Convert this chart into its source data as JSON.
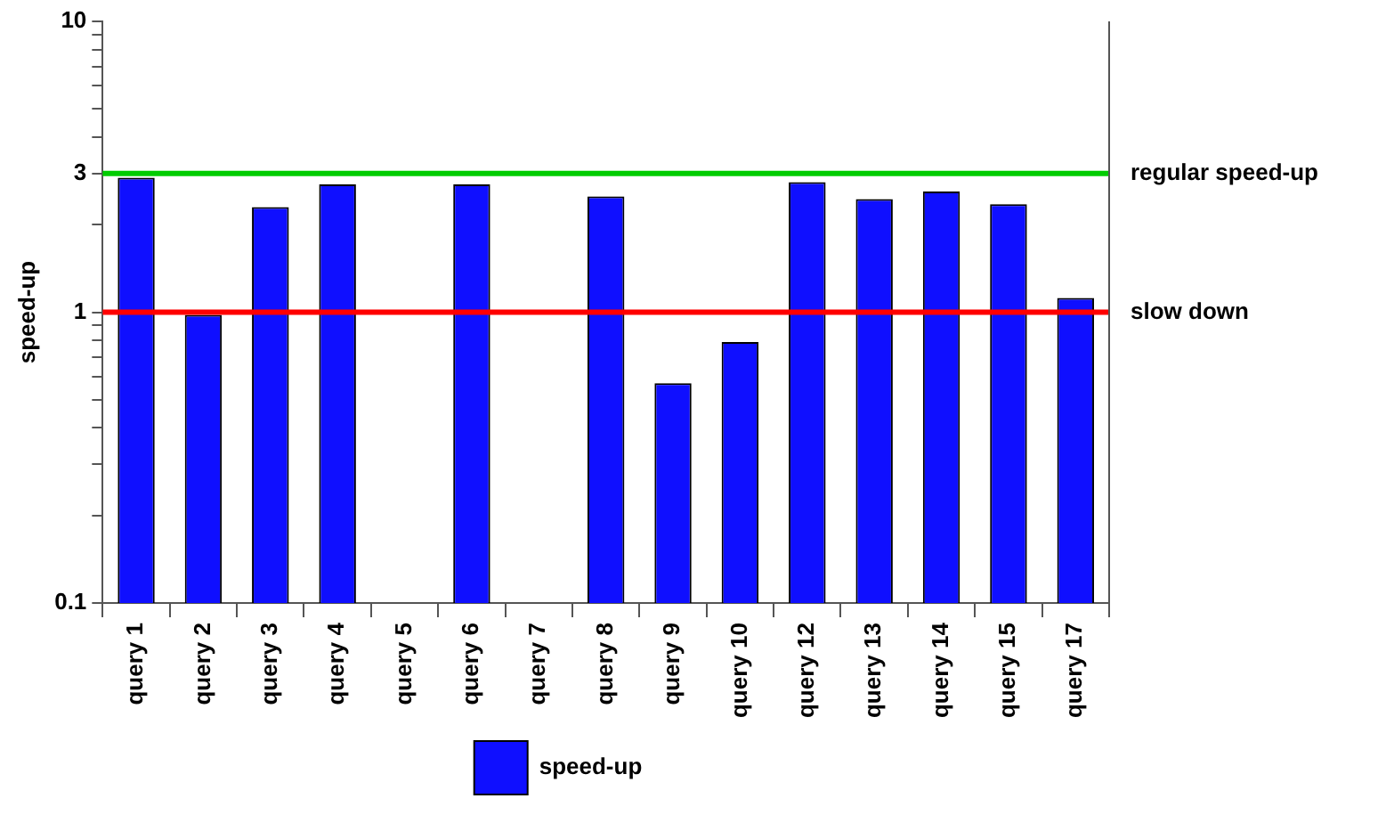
{
  "chart_data": {
    "type": "bar",
    "ylabel": "speed-up",
    "categories": [
      "query 1",
      "query 2",
      "query 3",
      "query 4",
      "query 5",
      "query 6",
      "query 7",
      "query 8",
      "query 9",
      "query 10",
      "query 12",
      "query 13",
      "query 14",
      "query 15",
      "query 17"
    ],
    "series": [
      {
        "name": "speed-up",
        "color": "#0f0fff",
        "values": [
          2.9,
          0.98,
          2.3,
          2.75,
          null,
          2.75,
          null,
          2.5,
          0.57,
          0.79,
          2.8,
          2.45,
          2.6,
          2.35,
          1.12
        ]
      }
    ],
    "log": true,
    "ylim": [
      0.1,
      10
    ],
    "yticks": [
      0.1,
      {
        "value": 0.2,
        "label": null
      },
      {
        "value": 0.3,
        "label": null
      },
      {
        "value": 0.4,
        "label": null
      },
      {
        "value": 0.5,
        "label": null
      },
      {
        "value": 0.6,
        "label": null
      },
      {
        "value": 0.7,
        "label": null
      },
      {
        "value": 0.8,
        "label": null
      },
      {
        "value": 0.9,
        "label": null
      },
      1,
      {
        "value": 2,
        "label": null
      },
      3,
      {
        "value": 4,
        "label": null
      },
      {
        "value": 5,
        "label": null
      },
      {
        "value": 6,
        "label": null
      },
      {
        "value": 7,
        "label": null
      },
      {
        "value": 8,
        "label": null
      },
      {
        "value": 9,
        "label": null
      },
      10
    ],
    "ref_lines": [
      {
        "axis": "y",
        "value": 3,
        "label": "regular speed-up",
        "color": "#00cc00"
      },
      {
        "axis": "y",
        "value": 1,
        "label": "slow down",
        "color": "#ff0000"
      }
    ],
    "grid": false,
    "legend": "bottom"
  }
}
